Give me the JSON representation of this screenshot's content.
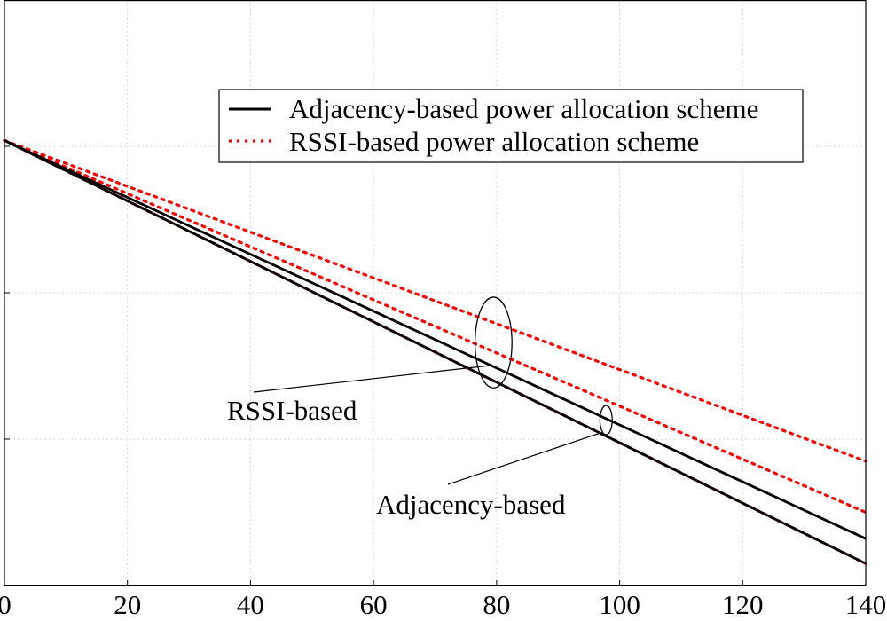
{
  "chart_data": {
    "type": "line",
    "title": "",
    "xlabel": "",
    "ylabel": "",
    "xlim": [
      0,
      140
    ],
    "ylim": [
      0,
      4
    ],
    "grid": true,
    "x_ticks": [
      0,
      20,
      40,
      60,
      80,
      100,
      120,
      140
    ],
    "x_tick_labels": [
      "0",
      "20",
      "40",
      "60",
      "80",
      "100",
      "120",
      "140"
    ],
    "y_ticks": [
      1,
      2,
      3
    ],
    "legend_position": "top-right",
    "x": [
      0,
      140
    ],
    "series": [
      {
        "name": "Adjacency-based power allocation scheme",
        "style": "solid",
        "color": "#000000",
        "values": [
          3.04,
          0.15
        ]
      },
      {
        "name": "Adjacency-based power allocation scheme",
        "style": "solid",
        "color": "#000000",
        "values": [
          3.04,
          0.32
        ]
      },
      {
        "name": "RSSI-based power allocation scheme",
        "style": "dotted",
        "color": "#ff0000",
        "values": [
          3.04,
          0.15
        ]
      },
      {
        "name": "RSSI-based power allocation scheme",
        "style": "dotted",
        "color": "#ff0000",
        "values": [
          3.04,
          0.5
        ]
      },
      {
        "name": "RSSI-based power allocation scheme",
        "style": "dotted",
        "color": "#ff0000",
        "values": [
          3.04,
          0.85
        ]
      }
    ],
    "annotations": [
      {
        "text": "RSSI-based",
        "target_x": 79.5,
        "target_y": 1.66,
        "ellipse_rx": 3.0,
        "ellipse_ry": 0.31
      },
      {
        "text": "Adjacency-based",
        "target_x": 97.8,
        "target_y": 1.13,
        "ellipse_rx": 1.0,
        "ellipse_ry": 0.1
      }
    ]
  }
}
